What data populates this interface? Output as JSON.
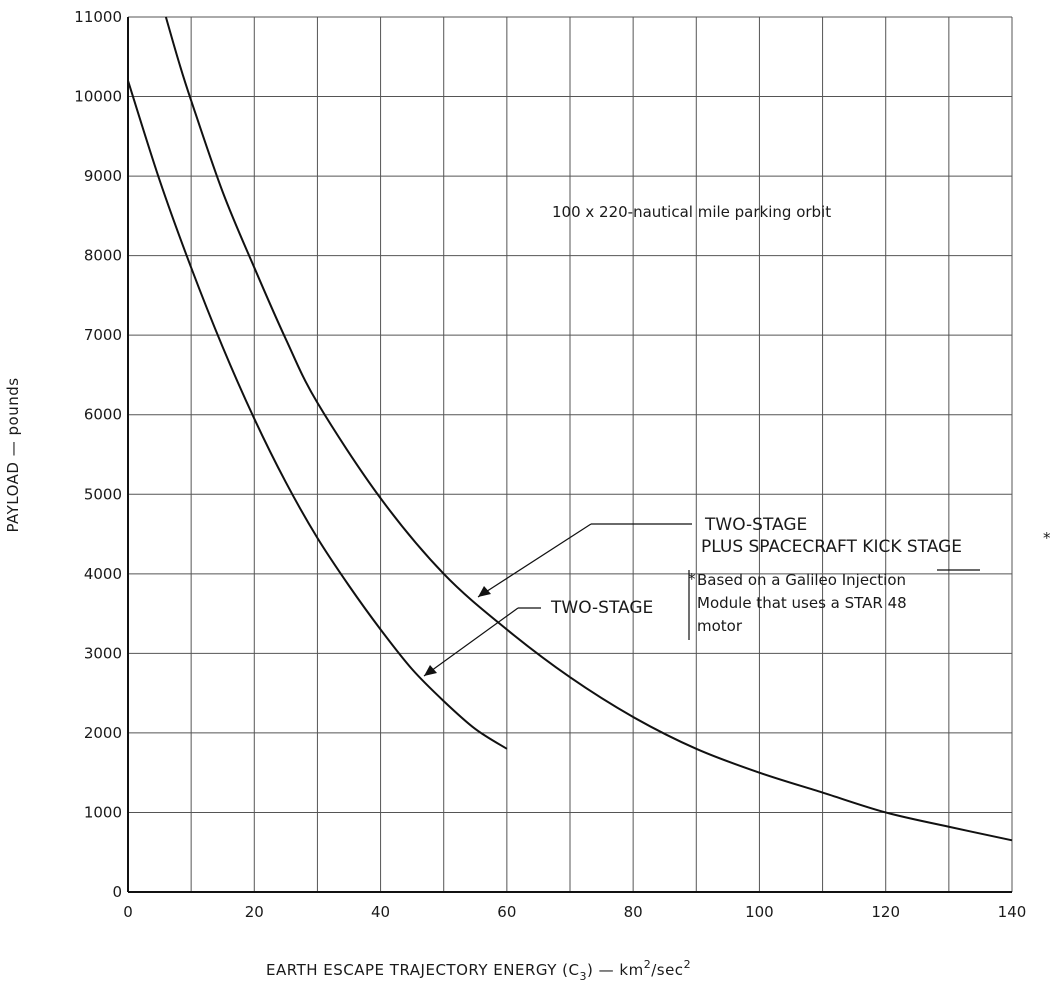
{
  "chart_data": {
    "type": "line",
    "title": "",
    "xlabel_main": "EARTH ESCAPE TRAJECTORY ENERGY (C",
    "xlabel_sub": "3",
    "xlabel_unit_a": ") — km",
    "xlabel_sup1": "2",
    "xlabel_unit_b": "/sec",
    "xlabel_sup2": "2",
    "ylabel": "PAYLOAD — pounds",
    "xlim": [
      0,
      140
    ],
    "ylim": [
      0,
      11000
    ],
    "xticks": [
      "0",
      "20",
      "40",
      "60",
      "80",
      "100",
      "120",
      "140"
    ],
    "yticks": [
      "0",
      "1000",
      "2000",
      "3000",
      "4000",
      "5000",
      "6000",
      "7000",
      "8000",
      "9000",
      "10000",
      "11000"
    ],
    "grid": true,
    "series": [
      {
        "name": "TWO-STAGE PLUS SPACECRAFT KICK STAGE",
        "x": [
          6,
          8,
          10,
          15,
          20,
          25,
          30,
          40,
          50,
          60,
          70,
          80,
          90,
          100,
          110,
          120,
          130,
          140
        ],
        "y": [
          11000,
          10450,
          9950,
          8800,
          7850,
          6950,
          6150,
          4950,
          4000,
          3300,
          2700,
          2200,
          1800,
          1500,
          1250,
          1000,
          820,
          650
        ]
      },
      {
        "name": "TWO-STAGE",
        "x": [
          0,
          5,
          10,
          15,
          20,
          25,
          30,
          35,
          40,
          45,
          50,
          55,
          60
        ],
        "y": [
          10200,
          8950,
          7850,
          6850,
          5950,
          5150,
          4450,
          3850,
          3300,
          2800,
          2400,
          2050,
          1800
        ]
      }
    ],
    "annotations": {
      "orbit": "100 x 220-nautical mile parking orbit",
      "kick_line1": "TWO-STAGE",
      "kick_line2": "PLUS SPACECRAFT KICK STAGE",
      "kick_star": "*",
      "two_stage": "TWO-STAGE",
      "foot_star": "*",
      "foot_line1": "Based on a Galileo Injection",
      "foot_line2": "Module that uses a STAR 48",
      "foot_line3": "motor"
    }
  }
}
